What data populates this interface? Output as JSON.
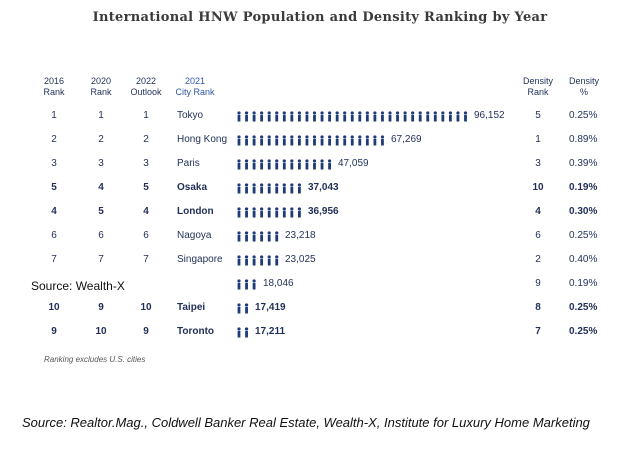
{
  "header": {
    "title": "International HNW Population and Density Ranking by Year"
  },
  "columns": {
    "rank2016": [
      "2016",
      "Rank"
    ],
    "rank2020": [
      "2020",
      "Rank"
    ],
    "outlook2022": [
      "2022",
      "Outlook"
    ],
    "city2021": [
      "2021",
      "City Rank"
    ],
    "density_rank": [
      "Density",
      "Rank"
    ],
    "density_pct": [
      "Density",
      "%"
    ]
  },
  "chart_data": {
    "type": "bar",
    "title": "International HNW Population and Density Ranking by Year",
    "categories": [
      "Tokyo",
      "Hong Kong",
      "Paris",
      "Osaka",
      "London",
      "Nagoya",
      "Singapore",
      "",
      "Taipei",
      "Toronto"
    ],
    "values": [
      96152,
      67269,
      47059,
      37043,
      36956,
      23218,
      23025,
      18046,
      17419,
      17211
    ],
    "value_labels": [
      "96,152",
      "67,269",
      "47,059",
      "37,043",
      "36,956",
      "23,218",
      "23,025",
      "18,046",
      "17,419",
      "17,211"
    ],
    "rank_2016": [
      "1",
      "2",
      "3",
      "5",
      "4",
      "6",
      "7",
      "",
      "10",
      "9"
    ],
    "rank_2020": [
      "1",
      "2",
      "3",
      "4",
      "5",
      "6",
      "7",
      "",
      "9",
      "10"
    ],
    "outlook_2022": [
      "1",
      "2",
      "3",
      "5",
      "4",
      "6",
      "7",
      "",
      "10",
      "9"
    ],
    "density_rank": [
      "5",
      "1",
      "3",
      "10",
      "4",
      "6",
      "2",
      "9",
      "8",
      "7"
    ],
    "density_pct": [
      "0.25%",
      "0.89%",
      "0.39%",
      "0.19%",
      "0.30%",
      "0.25%",
      "0.40%",
      "0.19%",
      "0.25%",
      "0.25%"
    ],
    "bold_rows": [
      false,
      false,
      false,
      true,
      true,
      false,
      false,
      false,
      true,
      true
    ],
    "icon_counts": [
      31,
      20,
      13,
      9,
      9,
      6,
      6,
      3,
      2,
      2
    ],
    "color": "#1f3a75"
  },
  "overlay_source": "Source: Wealth-X",
  "footnote": "Ranking excludes U.S. cities",
  "source": "Source: Realtor.Mag., Coldwell Banker Real Estate, Wealth-X, Institute for Luxury Home Marketing"
}
